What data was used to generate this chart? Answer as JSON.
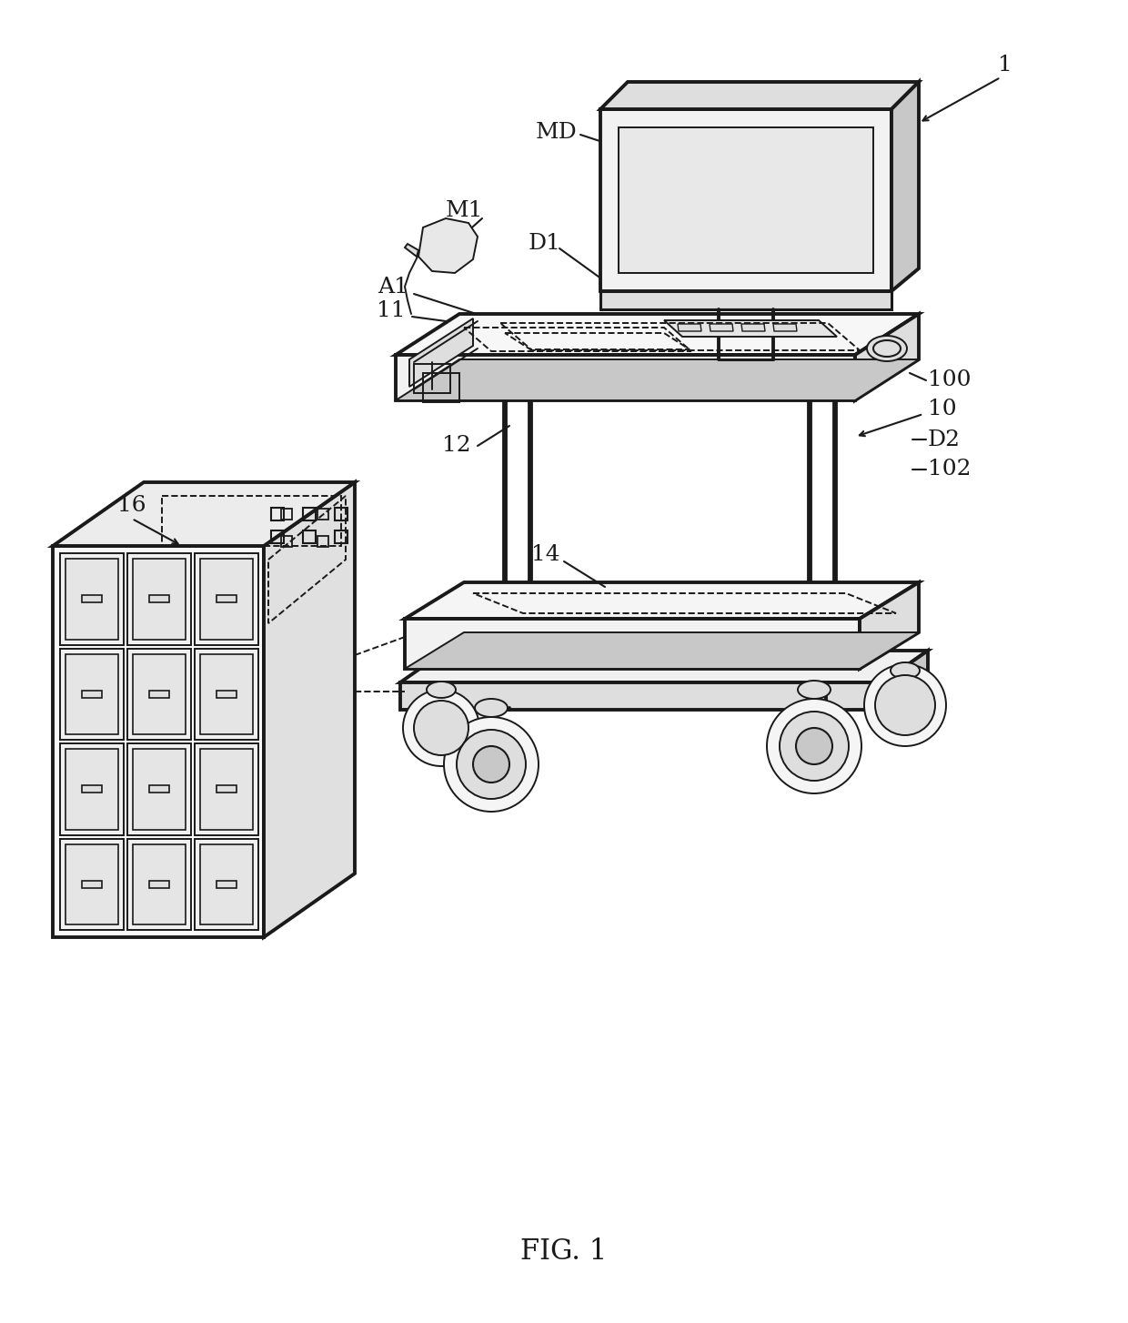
{
  "bg_color": "#ffffff",
  "lc": "#1a1a1a",
  "lw_main": 2.2,
  "lw_thin": 1.4,
  "lw_thick": 2.8,
  "fill_white": "#ffffff",
  "fill_light": "#f2f2f2",
  "fill_mid": "#dedede",
  "fill_dark": "#c8c8c8",
  "fill_darker": "#b0b0b0",
  "fig_caption": "FIG. 1",
  "caption_fontsize": 22,
  "label_fontsize": 18,
  "labels": [
    "1",
    "MD",
    "M1",
    "D1",
    "A1",
    "11",
    "12",
    "100",
    "10",
    "D2",
    "102",
    "14",
    "16"
  ]
}
